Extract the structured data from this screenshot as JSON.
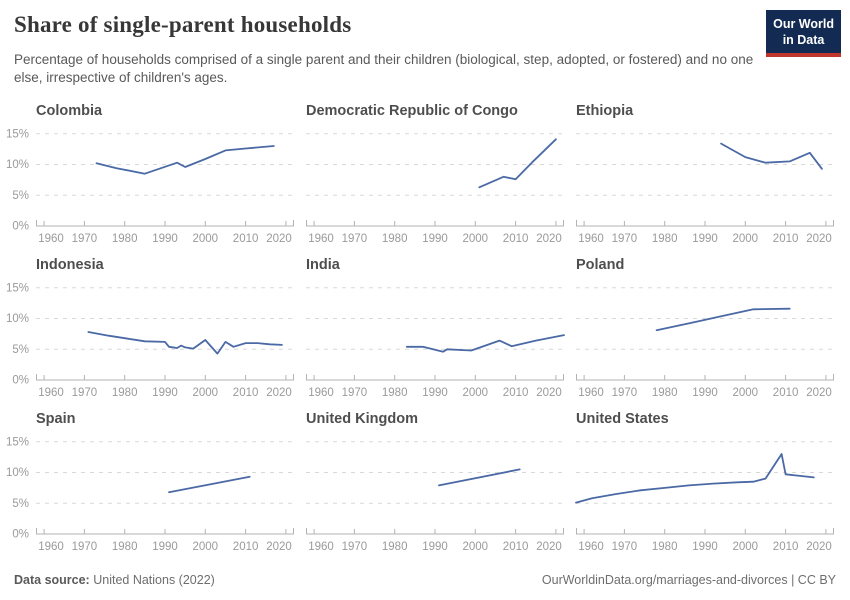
{
  "header": {
    "title": "Share of single-parent households",
    "subtitle": "Percentage of households comprised of a single parent and their children (biological, step, adopted, or fostered) and no one else, irrespective of children's ages.",
    "logo": {
      "line1": "Our World",
      "line2": "in Data",
      "bg_color": "#132b52",
      "accent_color": "#c0362c"
    }
  },
  "chart_data": {
    "type": "line",
    "title": "Share of single-parent households",
    "unit": "%",
    "x_domain": [
      1958,
      2022
    ],
    "y_domain": [
      0,
      16
    ],
    "x_ticks": [
      1960,
      1970,
      1980,
      1990,
      2000,
      2010,
      2020
    ],
    "y_ticks": [
      0,
      5,
      10,
      15
    ],
    "y_tick_labels": [
      "0%",
      "5%",
      "10%",
      "15%"
    ],
    "grid": true,
    "legend_position": "none",
    "line_color": "#4a69a5",
    "grid_color": "#d8d8d8",
    "axis_color": "#b3b3b3",
    "tick_label_color": "#9a9a9a",
    "facets": [
      {
        "name": "Colombia",
        "points": [
          [
            1973,
            10.2
          ],
          [
            1978,
            9.4
          ],
          [
            1985,
            8.5
          ],
          [
            1993,
            10.3
          ],
          [
            1995,
            9.6
          ],
          [
            2000,
            10.9
          ],
          [
            2005,
            12.3
          ],
          [
            2010,
            12.6
          ],
          [
            2017,
            13.0
          ]
        ]
      },
      {
        "name": "Democratic Republic of Congo",
        "points": [
          [
            2001,
            6.3
          ],
          [
            2007,
            8.0
          ],
          [
            2010,
            7.6
          ],
          [
            2014,
            10.3
          ],
          [
            2020,
            14.1
          ]
        ]
      },
      {
        "name": "Ethiopia",
        "points": [
          [
            1994,
            13.4
          ],
          [
            2000,
            11.2
          ],
          [
            2005,
            10.3
          ],
          [
            2011,
            10.5
          ],
          [
            2016,
            11.9
          ],
          [
            2019,
            9.3
          ]
        ]
      },
      {
        "name": "Indonesia",
        "points": [
          [
            1971,
            7.8
          ],
          [
            1976,
            7.2
          ],
          [
            1980,
            6.8
          ],
          [
            1985,
            6.3
          ],
          [
            1990,
            6.2
          ],
          [
            1991,
            5.4
          ],
          [
            1993,
            5.2
          ],
          [
            1994,
            5.6
          ],
          [
            1995,
            5.3
          ],
          [
            1997,
            5.1
          ],
          [
            2000,
            6.5
          ],
          [
            2003,
            4.3
          ],
          [
            2005,
            6.2
          ],
          [
            2007,
            5.4
          ],
          [
            2010,
            6.0
          ],
          [
            2013,
            6.0
          ],
          [
            2016,
            5.8
          ],
          [
            2019,
            5.7
          ]
        ]
      },
      {
        "name": "India",
        "points": [
          [
            1983,
            5.4
          ],
          [
            1987,
            5.4
          ],
          [
            1992,
            4.6
          ],
          [
            1993,
            5.0
          ],
          [
            1999,
            4.8
          ],
          [
            2006,
            6.4
          ],
          [
            2009,
            5.5
          ],
          [
            2015,
            6.4
          ],
          [
            2022,
            7.3
          ]
        ]
      },
      {
        "name": "Poland",
        "points": [
          [
            1978,
            8.1
          ],
          [
            1988,
            9.5
          ],
          [
            1995,
            10.5
          ],
          [
            2002,
            11.5
          ],
          [
            2011,
            11.6
          ]
        ]
      },
      {
        "name": "Spain",
        "points": [
          [
            1991,
            6.8
          ],
          [
            2011,
            9.3
          ]
        ]
      },
      {
        "name": "United Kingdom",
        "points": [
          [
            1991,
            7.9
          ],
          [
            2011,
            10.5
          ]
        ]
      },
      {
        "name": "United States",
        "points": [
          [
            1958,
            5.1
          ],
          [
            1962,
            5.8
          ],
          [
            1968,
            6.5
          ],
          [
            1974,
            7.1
          ],
          [
            1980,
            7.5
          ],
          [
            1986,
            7.9
          ],
          [
            1992,
            8.2
          ],
          [
            1998,
            8.4
          ],
          [
            2002,
            8.5
          ],
          [
            2005,
            9.0
          ],
          [
            2009,
            13.0
          ],
          [
            2010,
            9.7
          ],
          [
            2013,
            9.5
          ],
          [
            2017,
            9.2
          ]
        ]
      }
    ]
  },
  "footer": {
    "source_label": "Data source:",
    "source_value": "United Nations (2022)",
    "link": "OurWorldinData.org/marriages-and-divorces",
    "separator": " | ",
    "license": "CC BY"
  }
}
